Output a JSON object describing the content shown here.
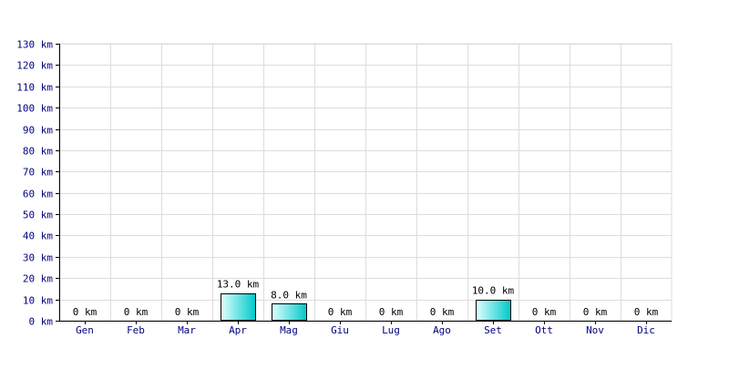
{
  "chart_data": {
    "type": "bar",
    "title": "",
    "xlabel": "",
    "ylabel": "",
    "categories": [
      "Gen",
      "Feb",
      "Mar",
      "Apr",
      "Mag",
      "Giu",
      "Lug",
      "Ago",
      "Set",
      "Ott",
      "Nov",
      "Dic"
    ],
    "values": [
      0,
      0,
      0,
      13.0,
      8.0,
      0,
      0,
      0,
      10.0,
      0,
      0,
      0
    ],
    "value_labels": [
      "0 km",
      "0 km",
      "0 km",
      "13.0 km",
      "8.0 km",
      "0 km",
      "0 km",
      "0 km",
      "10.0 km",
      "0 km",
      "0 km",
      "0 km"
    ],
    "y_ticks": [
      0,
      10,
      20,
      30,
      40,
      50,
      60,
      70,
      80,
      90,
      100,
      110,
      120,
      130
    ],
    "y_tick_labels": [
      "0 km",
      "10 km",
      "20 km",
      "30 km",
      "40 km",
      "50 km",
      "60 km",
      "70 km",
      "80 km",
      "90 km",
      "100 km",
      "110 km",
      "120 km",
      "130 km"
    ],
    "ylim": [
      0,
      130
    ],
    "grid": true,
    "colors": {
      "bar_light": "#e0ffff",
      "bar_dark": "#00c8c8",
      "bar_border": "#000000",
      "grid": "#dcdcdc",
      "axis": "#000000",
      "tick_label": "#000080",
      "value_label": "#000000"
    }
  }
}
